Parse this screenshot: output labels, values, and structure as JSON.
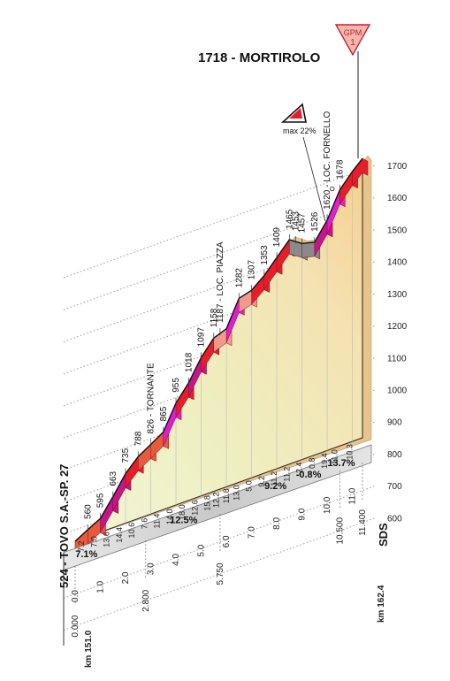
{
  "chart_data": {
    "type": "area",
    "title": "1718 - MORTIROLO",
    "gpm_badge": {
      "label": "GPM",
      "number": "1"
    },
    "max_badge": "max 22%",
    "ylim": [
      500,
      1700
    ],
    "yticks": [
      "600",
      "700",
      "800",
      "900",
      "1000",
      "1100",
      "1200",
      "1300",
      "1400",
      "1500",
      "1600",
      "1700"
    ],
    "start_label": "524 - TOVO S.A.-SP. 27",
    "sds_label": "SDS",
    "profile": {
      "x": [
        0,
        0.5,
        1,
        1.5,
        2,
        2.5,
        3,
        3.5,
        4,
        4.5,
        5,
        5.5,
        6,
        6.5,
        7,
        7.5,
        8,
        8.5,
        9,
        9.5,
        10,
        10.5,
        11,
        11.4
      ],
      "y": [
        524,
        560,
        595,
        663,
        735,
        788,
        826,
        865,
        955,
        1018,
        1097,
        1158,
        1187,
        1282,
        1307,
        1353,
        1409,
        1465,
        1453,
        1457,
        1526,
        1620,
        1678,
        1718
      ]
    },
    "point_labels": [
      {
        "x": 0.5,
        "value": "560"
      },
      {
        "x": 1.0,
        "value": "595"
      },
      {
        "x": 1.5,
        "value": "663"
      },
      {
        "x": 2.0,
        "value": "735"
      },
      {
        "x": 2.5,
        "value": "788"
      },
      {
        "x": 3.0,
        "value": "826 - TORNANTE"
      },
      {
        "x": 3.5,
        "value": "865"
      },
      {
        "x": 4.0,
        "value": "955"
      },
      {
        "x": 4.5,
        "value": "1018"
      },
      {
        "x": 5.0,
        "value": "1097"
      },
      {
        "x": 5.5,
        "value": "1158"
      },
      {
        "x": 5.75,
        "value": "1187 - LOC. PIAZZA"
      },
      {
        "x": 6.5,
        "value": "1282"
      },
      {
        "x": 7.0,
        "value": "1307"
      },
      {
        "x": 7.5,
        "value": "1353"
      },
      {
        "x": 8.0,
        "value": "1409"
      },
      {
        "x": 8.5,
        "value": "1465"
      },
      {
        "x": 8.75,
        "value": "1453"
      },
      {
        "x": 9.0,
        "value": "1457"
      },
      {
        "x": 9.5,
        "value": "1526"
      },
      {
        "x": 10.0,
        "value": "1620 - LOC. FORNELLO"
      },
      {
        "x": 10.5,
        "value": "1678"
      }
    ],
    "segment_grades": [
      {
        "x": 0.25,
        "value": "7.2"
      },
      {
        "x": 0.75,
        "value": "7.0"
      },
      {
        "x": 1.25,
        "value": "13.6"
      },
      {
        "x": 1.75,
        "value": "14.4"
      },
      {
        "x": 2.25,
        "value": "10.6"
      },
      {
        "x": 2.75,
        "value": "7.6"
      },
      {
        "x": 3.25,
        "value": "11.4"
      },
      {
        "x": 3.75,
        "value": "14.0"
      },
      {
        "x": 4.25,
        "value": "18.0"
      },
      {
        "x": 4.75,
        "value": "12.6"
      },
      {
        "x": 5.25,
        "value": "15.8"
      },
      {
        "x": 5.6,
        "value": "12.2"
      },
      {
        "x": 6.0,
        "value": "11.8"
      },
      {
        "x": 6.4,
        "value": "13.0"
      },
      {
        "x": 6.9,
        "value": "5.0"
      },
      {
        "x": 7.4,
        "value": "9.2"
      },
      {
        "x": 7.9,
        "value": "11.2"
      },
      {
        "x": 8.4,
        "value": "11.2"
      },
      {
        "x": 8.9,
        "value": "-2.4"
      },
      {
        "x": 9.4,
        "value": "0.8"
      },
      {
        "x": 9.9,
        "value": "19.4"
      },
      {
        "x": 10.3,
        "value": "11.0"
      },
      {
        "x": 10.9,
        "value": "10.3"
      }
    ],
    "avg_grades": [
      {
        "x": 0.5,
        "value": "7.1%"
      },
      {
        "x": 4.25,
        "value": "12.5%"
      },
      {
        "x": 8.0,
        "value": "9.2%"
      },
      {
        "x": 9.25,
        "value": "-0.8%"
      },
      {
        "x": 10.5,
        "value": "13.7%"
      }
    ],
    "x_ticks": [
      "0.0",
      "1.0",
      "2.0",
      "3.0",
      "4.0",
      "5.0",
      "6.0",
      "7.0",
      "8.0",
      "9.0",
      "10.0",
      "11.0"
    ],
    "x_markers": [
      {
        "x": 0,
        "value": "0.000"
      },
      {
        "x": 2.8,
        "value": "2.800"
      },
      {
        "x": 5.75,
        "value": "5.750"
      },
      {
        "x": 10.5,
        "value": "10.500"
      },
      {
        "x": 11.4,
        "value": "11.400"
      }
    ],
    "km_start": "km 151.0",
    "km_end": "km 162.4"
  }
}
